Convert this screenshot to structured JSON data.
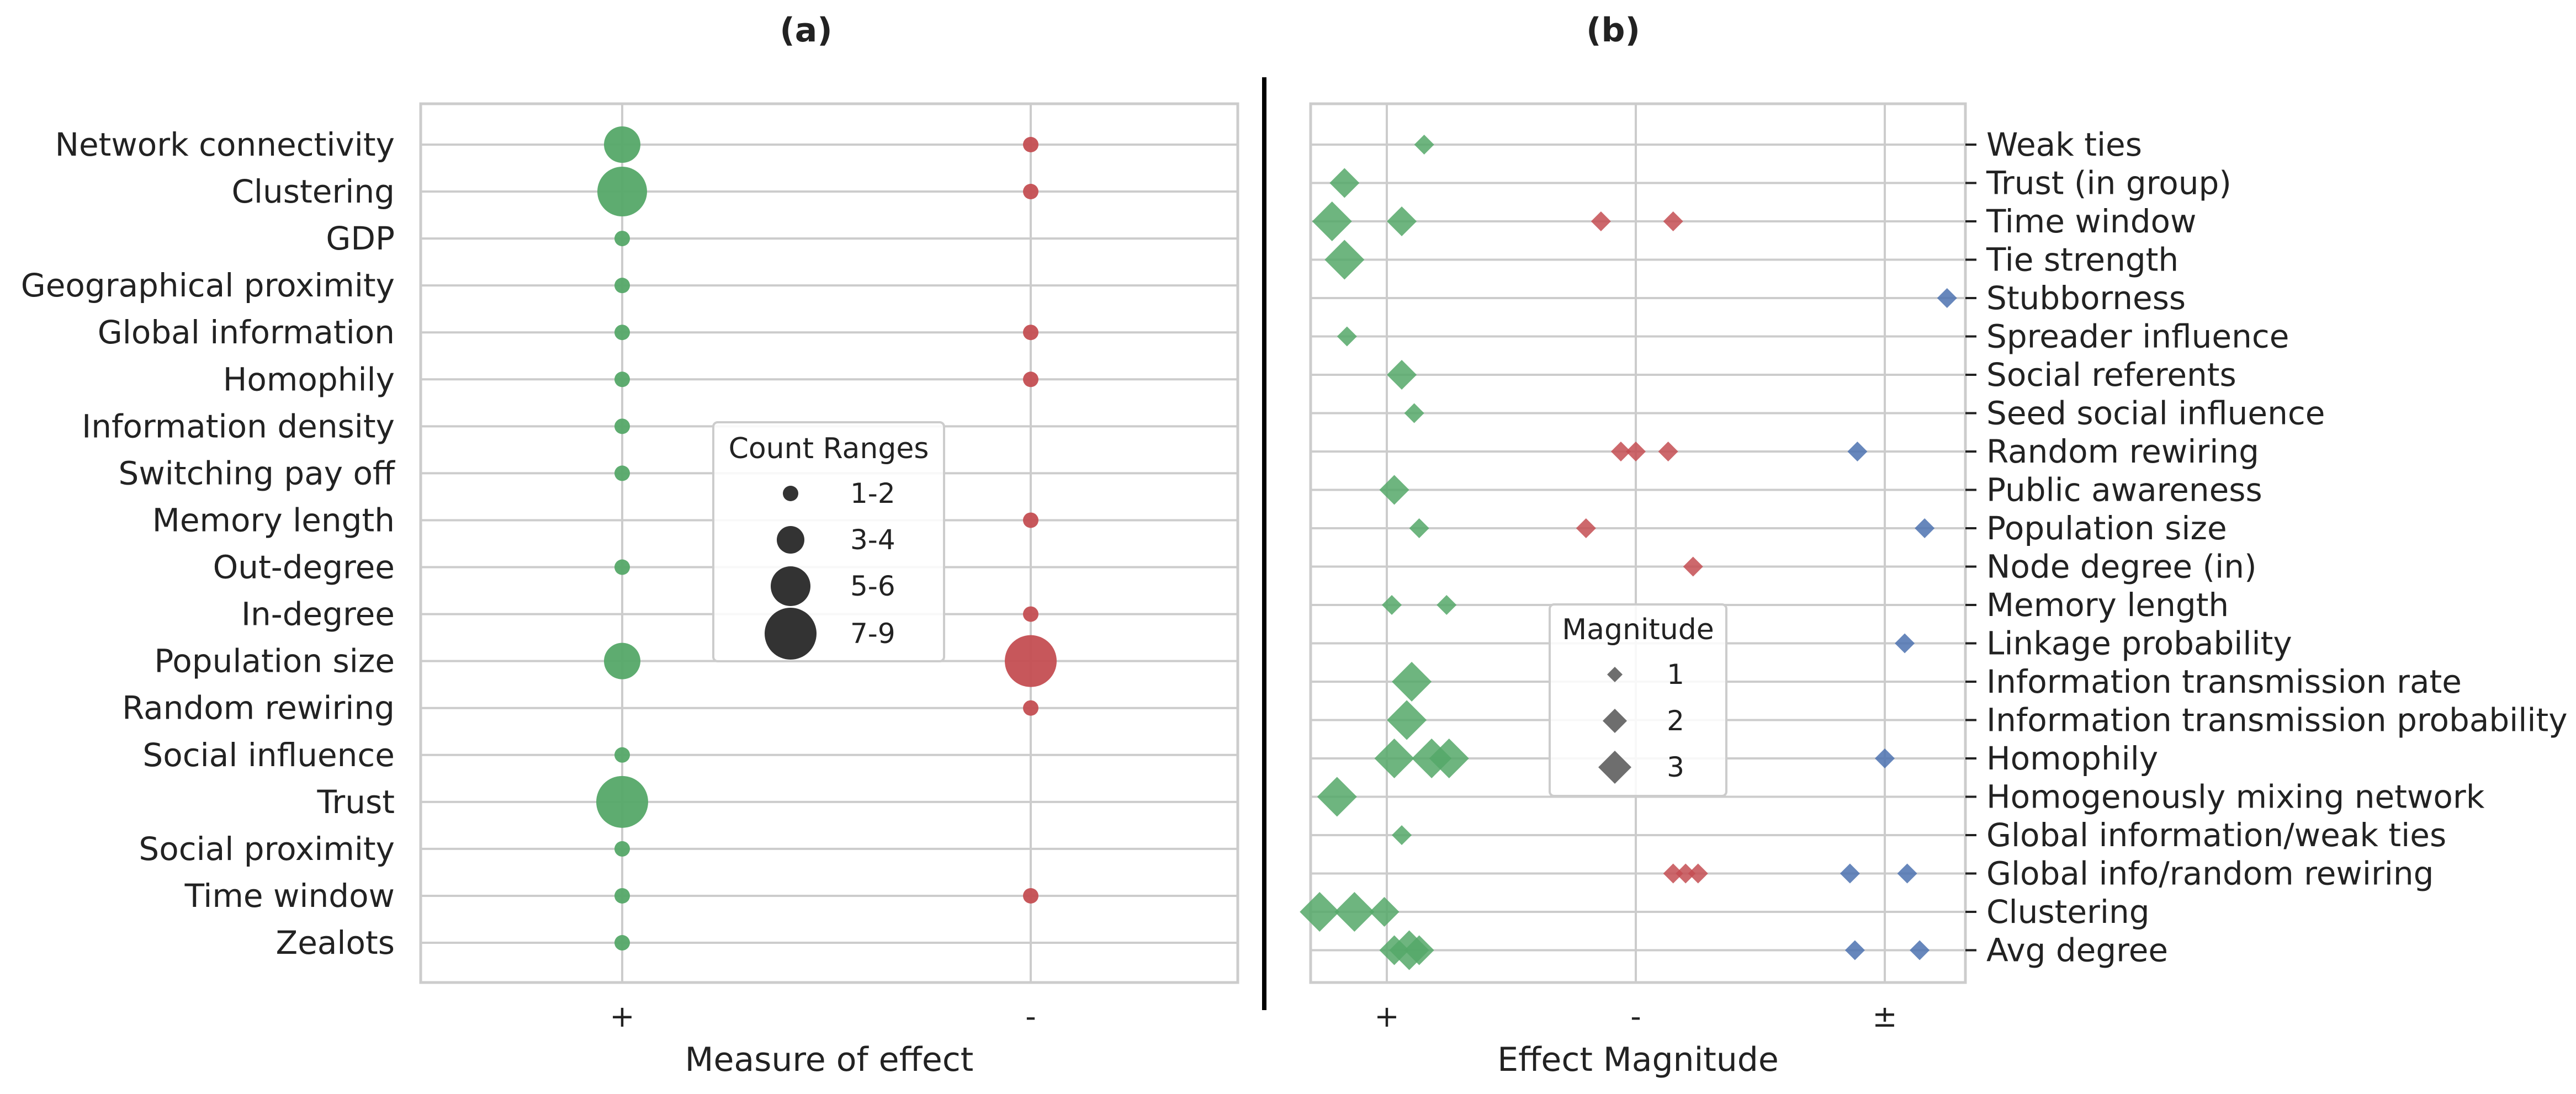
{
  "chart_data": [
    {
      "type": "scatter",
      "title": "(a)",
      "xlabel": "Measure of effect",
      "x_categories": [
        "+",
        "-"
      ],
      "y_categories": [
        "Network connectivity",
        "Clustering",
        "GDP",
        "Geographical proximity",
        "Global information",
        "Homophily",
        "Information density",
        "Switching pay off",
        "Memory length",
        "Out-degree",
        "In-degree",
        "Population size",
        "Random rewiring",
        "Social influence",
        "Trust",
        "Social proximity",
        "Time window",
        "Zealots"
      ],
      "size_encoding": "count",
      "points": [
        {
          "y": "Network connectivity",
          "x": "+",
          "count": 4,
          "color": "#55a868"
        },
        {
          "y": "Network connectivity",
          "x": "-",
          "count": 2,
          "color": "#c44e52"
        },
        {
          "y": "Clustering",
          "x": "+",
          "count": 6,
          "color": "#55a868"
        },
        {
          "y": "Clustering",
          "x": "-",
          "count": 1,
          "color": "#c44e52"
        },
        {
          "y": "GDP",
          "x": "+",
          "count": 1,
          "color": "#55a868"
        },
        {
          "y": "Geographical proximity",
          "x": "+",
          "count": 1,
          "color": "#55a868"
        },
        {
          "y": "Global information",
          "x": "+",
          "count": 2,
          "color": "#55a868"
        },
        {
          "y": "Global information",
          "x": "-",
          "count": 2,
          "color": "#c44e52"
        },
        {
          "y": "Homophily",
          "x": "+",
          "count": 2,
          "color": "#55a868"
        },
        {
          "y": "Homophily",
          "x": "-",
          "count": 1,
          "color": "#c44e52"
        },
        {
          "y": "Information density",
          "x": "+",
          "count": 1,
          "color": "#55a868"
        },
        {
          "y": "Switching pay off",
          "x": "+",
          "count": 1,
          "color": "#55a868"
        },
        {
          "y": "Memory length",
          "x": "-",
          "count": 1,
          "color": "#c44e52"
        },
        {
          "y": "Out-degree",
          "x": "+",
          "count": 1,
          "color": "#55a868"
        },
        {
          "y": "In-degree",
          "x": "-",
          "count": 1,
          "color": "#c44e52"
        },
        {
          "y": "Population size",
          "x": "+",
          "count": 4,
          "color": "#55a868"
        },
        {
          "y": "Population size",
          "x": "-",
          "count": 7,
          "color": "#c44e52"
        },
        {
          "y": "Random rewiring",
          "x": "-",
          "count": 2,
          "color": "#c44e52"
        },
        {
          "y": "Social influence",
          "x": "+",
          "count": 1,
          "color": "#55a868"
        },
        {
          "y": "Trust",
          "x": "+",
          "count": 7,
          "color": "#55a868"
        },
        {
          "y": "Social proximity",
          "x": "+",
          "count": 2,
          "color": "#55a868"
        },
        {
          "y": "Time window",
          "x": "+",
          "count": 1,
          "color": "#55a868"
        },
        {
          "y": "Time window",
          "x": "-",
          "count": 1,
          "color": "#c44e52"
        },
        {
          "y": "Zealots",
          "x": "+",
          "count": 1,
          "color": "#55a868"
        }
      ],
      "legend": {
        "title": "Count Ranges",
        "entries": [
          "1-2",
          "3-4",
          "5-6",
          "7-9"
        ],
        "placement": "center"
      },
      "grid": true
    },
    {
      "type": "scatter",
      "title": "(b)",
      "xlabel": "Effect Magnitude",
      "x_categories": [
        "+",
        "-",
        "±"
      ],
      "y_categories": [
        "Weak ties",
        "Trust (in group)",
        "Time window",
        "Tie strength",
        "Stubborness",
        "Spreader influence",
        "Social referents",
        "Seed social influence",
        "Random rewiring",
        "Public awareness",
        "Population size",
        "Node degree (in)",
        "Memory length",
        "Linkage probability",
        "Information transmission rate",
        "Information transmission probability",
        "Homophily",
        "Homogenously mixing network",
        "Global information/weak ties",
        "Global info/random rewiring",
        "Clustering",
        "Avg degree"
      ],
      "y_axis_side": "right",
      "x_range": [
        -0.65,
        2.65
      ],
      "size_encoding": "magnitude",
      "points": [
        {
          "y": "Weak ties",
          "x": 0.15,
          "magnitude": 1,
          "color": "#55a868"
        },
        {
          "y": "Trust (in group)",
          "x": -0.17,
          "magnitude": 2,
          "color": "#55a868"
        },
        {
          "y": "Time window",
          "x": -0.22,
          "magnitude": 3,
          "color": "#55a868"
        },
        {
          "y": "Time window",
          "x": 0.06,
          "magnitude": 2,
          "color": "#55a868"
        },
        {
          "y": "Time window",
          "x": 0.86,
          "magnitude": 1,
          "color": "#c44e52"
        },
        {
          "y": "Time window",
          "x": 1.15,
          "magnitude": 1,
          "color": "#c44e52"
        },
        {
          "y": "Tie strength",
          "x": -0.17,
          "magnitude": 3,
          "color": "#55a868"
        },
        {
          "y": "Stubborness",
          "x": 2.25,
          "magnitude": 1,
          "color": "#4c72b0"
        },
        {
          "y": "Spreader influence",
          "x": -0.16,
          "magnitude": 1,
          "color": "#55a868"
        },
        {
          "y": "Social referents",
          "x": 0.06,
          "magnitude": 2,
          "color": "#55a868"
        },
        {
          "y": "Seed social influence",
          "x": 0.11,
          "magnitude": 1,
          "color": "#55a868"
        },
        {
          "y": "Random rewiring",
          "x": 0.94,
          "magnitude": 1,
          "color": "#c44e52"
        },
        {
          "y": "Random rewiring",
          "x": 1.0,
          "magnitude": 1,
          "color": "#c44e52"
        },
        {
          "y": "Random rewiring",
          "x": 1.13,
          "magnitude": 1,
          "color": "#c44e52"
        },
        {
          "y": "Random rewiring",
          "x": 1.89,
          "magnitude": 1,
          "color": "#4c72b0"
        },
        {
          "y": "Public awareness",
          "x": 0.03,
          "magnitude": 2,
          "color": "#55a868"
        },
        {
          "y": "Population size",
          "x": 0.13,
          "magnitude": 1,
          "color": "#55a868"
        },
        {
          "y": "Population size",
          "x": 0.8,
          "magnitude": 1,
          "color": "#c44e52"
        },
        {
          "y": "Population size",
          "x": 2.16,
          "magnitude": 1,
          "color": "#4c72b0"
        },
        {
          "y": "Node degree (in)",
          "x": 1.23,
          "magnitude": 1,
          "color": "#c44e52"
        },
        {
          "y": "Memory length",
          "x": 0.02,
          "magnitude": 1,
          "color": "#55a868"
        },
        {
          "y": "Memory length",
          "x": 0.24,
          "magnitude": 1,
          "color": "#55a868"
        },
        {
          "y": "Linkage probability",
          "x": 2.08,
          "magnitude": 1,
          "color": "#4c72b0"
        },
        {
          "y": "Information transmission rate",
          "x": 0.1,
          "magnitude": 3,
          "color": "#55a868"
        },
        {
          "y": "Information transmission probability",
          "x": 0.08,
          "magnitude": 3,
          "color": "#55a868"
        },
        {
          "y": "Homophily",
          "x": 0.03,
          "magnitude": 3,
          "color": "#55a868"
        },
        {
          "y": "Homophily",
          "x": 0.18,
          "magnitude": 3,
          "color": "#55a868"
        },
        {
          "y": "Homophily",
          "x": 0.25,
          "magnitude": 3,
          "color": "#55a868"
        },
        {
          "y": "Homophily",
          "x": 2.0,
          "magnitude": 1,
          "color": "#4c72b0"
        },
        {
          "y": "Homogenously mixing network",
          "x": -0.2,
          "magnitude": 3,
          "color": "#55a868"
        },
        {
          "y": "Global information/weak ties",
          "x": 0.06,
          "magnitude": 1,
          "color": "#55a868"
        },
        {
          "y": "Global info/random rewiring",
          "x": 1.15,
          "magnitude": 1,
          "color": "#c44e52"
        },
        {
          "y": "Global info/random rewiring",
          "x": 1.2,
          "magnitude": 1,
          "color": "#c44e52"
        },
        {
          "y": "Global info/random rewiring",
          "x": 1.25,
          "magnitude": 1,
          "color": "#c44e52"
        },
        {
          "y": "Global info/random rewiring",
          "x": 1.86,
          "magnitude": 1,
          "color": "#4c72b0"
        },
        {
          "y": "Global info/random rewiring",
          "x": 2.09,
          "magnitude": 1,
          "color": "#4c72b0"
        },
        {
          "y": "Clustering",
          "x": -0.27,
          "magnitude": 3,
          "color": "#55a868"
        },
        {
          "y": "Clustering",
          "x": -0.13,
          "magnitude": 3,
          "color": "#55a868"
        },
        {
          "y": "Clustering",
          "x": -0.01,
          "magnitude": 2,
          "color": "#55a868"
        },
        {
          "y": "Avg degree",
          "x": 0.03,
          "magnitude": 2,
          "color": "#55a868"
        },
        {
          "y": "Avg degree",
          "x": 0.09,
          "magnitude": 3,
          "color": "#55a868"
        },
        {
          "y": "Avg degree",
          "x": 0.13,
          "magnitude": 2,
          "color": "#55a868"
        },
        {
          "y": "Avg degree",
          "x": 1.88,
          "magnitude": 1,
          "color": "#4c72b0"
        },
        {
          "y": "Avg degree",
          "x": 2.14,
          "magnitude": 1,
          "color": "#4c72b0"
        }
      ],
      "legend": {
        "title": "Magnitude",
        "entries": [
          "1",
          "2",
          "3"
        ],
        "placement": "lower center"
      },
      "grid": true
    }
  ]
}
